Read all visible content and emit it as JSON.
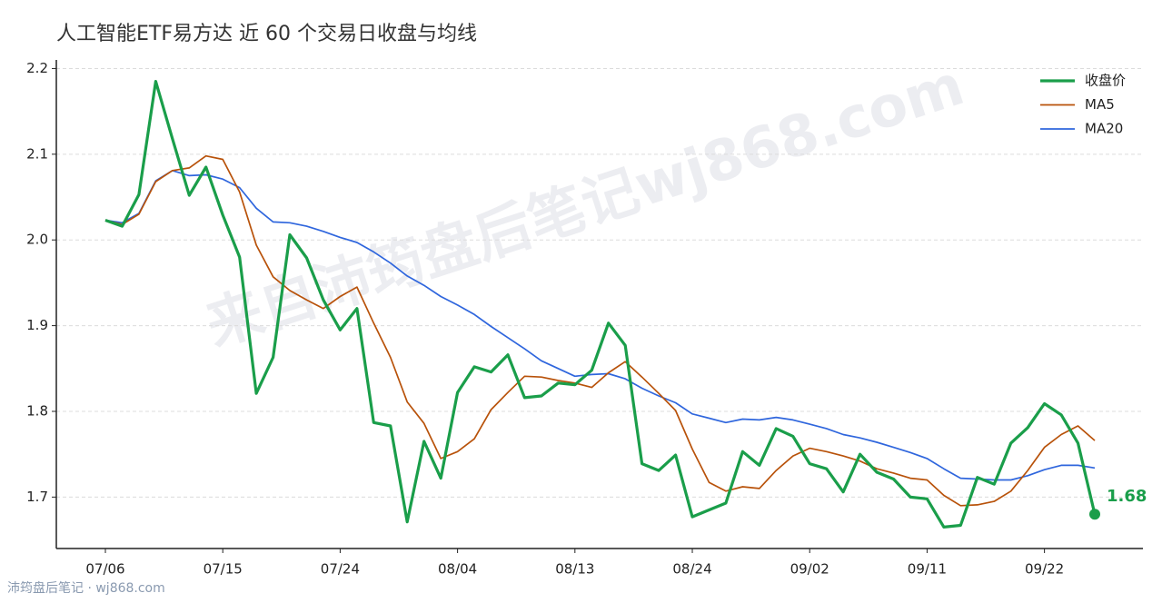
{
  "chart_data": {
    "type": "line",
    "title": "人工智能ETF易方达 近 60 个交易日收盘与均线",
    "watermark": "来自沛筠盘后笔记wj868.com",
    "footer": "沛筠盘后笔记 · wj868.com",
    "categories": [
      "07/06",
      null,
      null,
      null,
      null,
      null,
      null,
      "07/15",
      null,
      null,
      null,
      null,
      null,
      null,
      "07/24",
      null,
      null,
      null,
      null,
      null,
      null,
      "08/04",
      null,
      null,
      null,
      null,
      null,
      null,
      "08/13",
      null,
      null,
      null,
      null,
      null,
      null,
      "08/24",
      null,
      null,
      null,
      null,
      null,
      null,
      "09/02",
      null,
      null,
      null,
      null,
      null,
      null,
      "09/11",
      null,
      null,
      null,
      null,
      null,
      null,
      "09/22",
      null,
      null,
      null
    ],
    "series": [
      {
        "name": "收盘价",
        "color": "#1a9e4a",
        "values": [
          2.023,
          2.016,
          2.053,
          2.185,
          2.118,
          2.052,
          2.085,
          2.029,
          1.98,
          1.821,
          1.863,
          2.006,
          1.979,
          1.93,
          1.895,
          1.92,
          1.787,
          1.783,
          1.671,
          1.765,
          1.722,
          1.822,
          1.852,
          1.846,
          1.866,
          1.816,
          1.818,
          1.833,
          1.831,
          1.848,
          1.903,
          1.877,
          1.739,
          1.731,
          1.749,
          1.677,
          1.685,
          1.693,
          1.753,
          1.737,
          1.78,
          1.771,
          1.739,
          1.733,
          1.706,
          1.75,
          1.729,
          1.721,
          1.7,
          1.698,
          1.665,
          1.667,
          1.723,
          1.715,
          1.763,
          1.781,
          1.809,
          1.796,
          1.763,
          1.68
        ],
        "value_labels": [
          null,
          null,
          null,
          null,
          null,
          null,
          null,
          null,
          null,
          null,
          null,
          null,
          null,
          null,
          null,
          null,
          null,
          null,
          null,
          null,
          null,
          null,
          null,
          null,
          null,
          null,
          null,
          null,
          null,
          null,
          null,
          null,
          null,
          null,
          null,
          null,
          null,
          null,
          null,
          null,
          null,
          null,
          null,
          null,
          null,
          null,
          null,
          null,
          null,
          null,
          null,
          null,
          null,
          null,
          null,
          null,
          null,
          null,
          null,
          "1.68"
        ]
      },
      {
        "name": "MA5",
        "color": "#b8520a",
        "values": [
          2.023,
          2.018,
          2.03,
          2.068,
          2.081,
          2.084,
          2.098,
          2.094,
          2.056,
          1.994,
          1.957,
          1.941,
          1.93,
          1.92,
          1.934,
          1.945,
          1.903,
          1.863,
          1.811,
          1.786,
          1.745,
          1.753,
          1.768,
          1.802,
          1.822,
          1.841,
          1.84,
          1.836,
          1.833,
          1.828,
          1.845,
          1.858,
          1.84,
          1.821,
          1.801,
          1.756,
          1.717,
          1.707,
          1.712,
          1.71,
          1.731,
          1.748,
          1.757,
          1.753,
          1.748,
          1.742,
          1.733,
          1.728,
          1.722,
          1.72,
          1.702,
          1.69,
          1.691,
          1.695,
          1.707,
          1.731,
          1.758,
          1.773,
          1.783,
          1.766
        ]
      },
      {
        "name": "MA20",
        "color": "#2f66dd",
        "values": [
          2.023,
          2.02,
          2.031,
          2.069,
          2.081,
          2.075,
          2.076,
          2.071,
          2.061,
          2.037,
          2.021,
          2.02,
          2.016,
          2.01,
          2.003,
          1.997,
          1.986,
          1.973,
          1.958,
          1.947,
          1.934,
          1.924,
          1.913,
          1.899,
          1.886,
          1.873,
          1.859,
          1.85,
          1.841,
          1.843,
          1.844,
          1.838,
          1.827,
          1.818,
          1.81,
          1.797,
          1.792,
          1.787,
          1.791,
          1.79,
          1.793,
          1.79,
          1.785,
          1.78,
          1.773,
          1.769,
          1.764,
          1.758,
          1.752,
          1.745,
          1.733,
          1.722,
          1.721,
          1.72,
          1.72,
          1.725,
          1.732,
          1.737,
          1.737,
          1.734
        ]
      }
    ],
    "ylim": [
      1.64,
      2.21
    ],
    "yticks": [
      1.7,
      1.8,
      1.9,
      {
        "value": 2,
        "label": "2.0"
      },
      2.1,
      2.2
    ],
    "grid": true,
    "legend": "upper right"
  }
}
